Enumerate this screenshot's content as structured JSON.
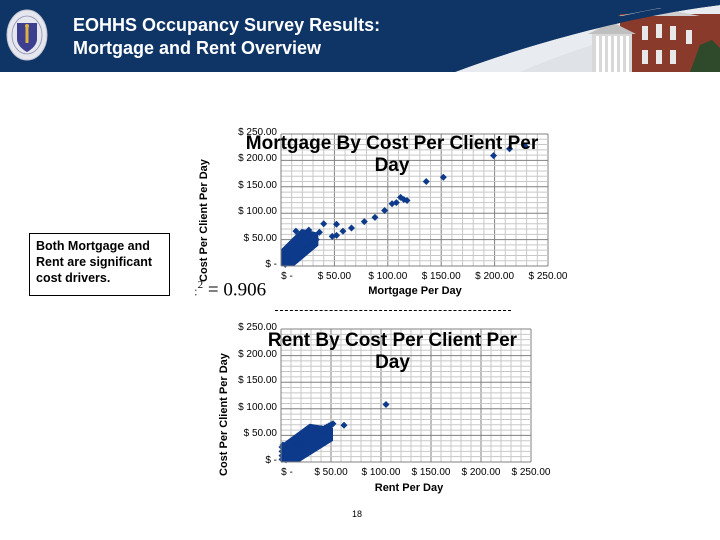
{
  "header": {
    "title_line1": "EOHHS Occupancy Survey Results:",
    "title_line2": "Mortgage and Rent Overview",
    "logo_icon": "massachusetts-seal-icon",
    "image": "state-house-building",
    "colors": {
      "banner": "#0f3466",
      "title_text": "#ffffff"
    }
  },
  "callout": {
    "text": "Both Mortgage and Rent are significant cost drivers."
  },
  "r_squared": {
    "prefix": "R",
    "sup": "2",
    "value": "= 0.906"
  },
  "page_number": "18",
  "chart_data": [
    {
      "type": "scatter",
      "title": "Mortgage By Cost Per Client Per Day",
      "xlabel": "Mortgage Per Day",
      "ylabel": "Cost Per Client Per Day",
      "xlim": [
        0,
        250
      ],
      "ylim": [
        0,
        250
      ],
      "x_ticks": [
        "$ -",
        "$ 50.00",
        "$ 100.00",
        "$ 150.00",
        "$ 200.00",
        "$ 250.00"
      ],
      "y_ticks": [
        "$ -",
        "$ 50.00",
        "$ 100.00",
        "$ 150.00",
        "$ 200.00",
        "$ 250.00"
      ],
      "grid": true,
      "marker_color": "#0d3a8a",
      "annotation": "R² = 0.906",
      "cluster": {
        "description": "dense cluster",
        "x_range": [
          0,
          35
        ],
        "y_range": [
          0,
          70
        ]
      },
      "points": [
        [
          3,
          5
        ],
        [
          5,
          10
        ],
        [
          8,
          14
        ],
        [
          10,
          18
        ],
        [
          12,
          22
        ],
        [
          14,
          26
        ],
        [
          16,
          30
        ],
        [
          18,
          34
        ],
        [
          20,
          38
        ],
        [
          22,
          42
        ],
        [
          24,
          45
        ],
        [
          26,
          48
        ],
        [
          28,
          50
        ],
        [
          30,
          52
        ],
        [
          5,
          20
        ],
        [
          8,
          25
        ],
        [
          10,
          30
        ],
        [
          12,
          35
        ],
        [
          15,
          40
        ],
        [
          18,
          45
        ],
        [
          20,
          50
        ],
        [
          22,
          55
        ],
        [
          25,
          58
        ],
        [
          14,
          66
        ],
        [
          26,
          68
        ],
        [
          30,
          38
        ],
        [
          33,
          50
        ],
        [
          36,
          64
        ],
        [
          40,
          80
        ],
        [
          4,
          3
        ],
        [
          7,
          8
        ],
        [
          10,
          12
        ],
        [
          13,
          15
        ],
        [
          16,
          20
        ],
        [
          19,
          24
        ],
        [
          22,
          28
        ],
        [
          25,
          32
        ],
        [
          28,
          35
        ],
        [
          31,
          40
        ],
        [
          48,
          56
        ],
        [
          52,
          58
        ],
        [
          52,
          79
        ],
        [
          58,
          66
        ],
        [
          66,
          72
        ],
        [
          78,
          84
        ],
        [
          88,
          92
        ],
        [
          97,
          105
        ],
        [
          104,
          118
        ],
        [
          108,
          120
        ],
        [
          112,
          130
        ],
        [
          115,
          126
        ],
        [
          118,
          124
        ],
        [
          136,
          160
        ],
        [
          152,
          168
        ],
        [
          199,
          209
        ],
        [
          214,
          222
        ],
        [
          228,
          228
        ]
      ]
    },
    {
      "type": "scatter",
      "title": "Rent By Cost Per Client Per Day",
      "xlabel": "Rent Per Day",
      "ylabel": "Cost Per Client Per Day",
      "xlim": [
        0,
        250
      ],
      "ylim": [
        0,
        250
      ],
      "x_ticks": [
        "$ -",
        "$ 50.00",
        "$ 100.00",
        "$ 150.00",
        "$ 200.00",
        "$ 250.00"
      ],
      "y_ticks": [
        "$ -",
        "$ 50.00",
        "$ 100.00",
        "$ 150.00",
        "$ 200.00",
        "$ 250.00"
      ],
      "grid": true,
      "marker_color": "#0d3a8a",
      "cluster": {
        "description": "dense cluster",
        "x_range": [
          0,
          52
        ],
        "y_range": [
          0,
          72
        ]
      },
      "points": [
        [
          1,
          5
        ],
        [
          1,
          12
        ],
        [
          1,
          20
        ],
        [
          1,
          28
        ],
        [
          2,
          32
        ],
        [
          4,
          8
        ],
        [
          6,
          14
        ],
        [
          8,
          18
        ],
        [
          10,
          22
        ],
        [
          12,
          25
        ],
        [
          14,
          28
        ],
        [
          16,
          30
        ],
        [
          18,
          33
        ],
        [
          20,
          36
        ],
        [
          22,
          38
        ],
        [
          24,
          40
        ],
        [
          26,
          43
        ],
        [
          28,
          46
        ],
        [
          30,
          48
        ],
        [
          32,
          50
        ],
        [
          34,
          53
        ],
        [
          36,
          55
        ],
        [
          38,
          57
        ],
        [
          40,
          60
        ],
        [
          42,
          62
        ],
        [
          44,
          64
        ],
        [
          46,
          66
        ],
        [
          48,
          68
        ],
        [
          50,
          70
        ],
        [
          52,
          72
        ],
        [
          6,
          24
        ],
        [
          10,
          30
        ],
        [
          15,
          40
        ],
        [
          20,
          46
        ],
        [
          25,
          50
        ],
        [
          30,
          55
        ],
        [
          35,
          58
        ],
        [
          40,
          63
        ],
        [
          5,
          4
        ],
        [
          10,
          10
        ],
        [
          15,
          16
        ],
        [
          20,
          22
        ],
        [
          25,
          28
        ],
        [
          30,
          33
        ],
        [
          35,
          38
        ],
        [
          40,
          45
        ],
        [
          45,
          52
        ],
        [
          63,
          69
        ],
        [
          105,
          108
        ]
      ]
    }
  ]
}
